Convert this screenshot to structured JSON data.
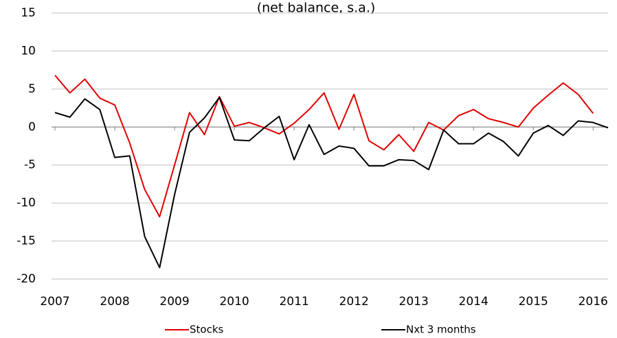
{
  "chart_data": {
    "type": "line",
    "title": "(net balance, s.a.)",
    "x": [
      2007,
      2007.25,
      2007.5,
      2007.75,
      2008,
      2008.25,
      2008.5,
      2008.75,
      2009,
      2009.25,
      2009.5,
      2009.75,
      2010,
      2010.25,
      2010.5,
      2010.75,
      2011,
      2011.25,
      2011.5,
      2011.75,
      2012,
      2012.25,
      2012.5,
      2012.75,
      2013,
      2013.25,
      2013.5,
      2013.75,
      2014,
      2014.25,
      2014.5,
      2014.75,
      2015,
      2015.25,
      2015.5,
      2015.75,
      2016,
      2016.25
    ],
    "series": [
      {
        "name": "Stocks",
        "color": "#e00000",
        "values": [
          6.8,
          4.5,
          6.3,
          3.8,
          2.9,
          -2.1,
          -8.2,
          -11.8,
          -5,
          1.9,
          -1,
          4,
          0.1,
          0.6,
          -0.1,
          -0.9,
          0.5,
          2.3,
          4.5,
          -0.3,
          4.3,
          -1.8,
          -3,
          -1,
          -3.2,
          0.6,
          -0.4,
          1.5,
          2.3,
          1.1,
          0.6,
          0,
          2.5,
          4.2,
          5.8,
          4.3,
          1.8,
          null
        ]
      },
      {
        "name": "Nxt 3 months",
        "color": "#000000",
        "values": [
          1.9,
          1.3,
          3.7,
          2.3,
          -4,
          -3.8,
          -14.4,
          -18.5,
          -8.9,
          -0.7,
          1.2,
          3.9,
          -1.7,
          -1.8,
          -0.1,
          1.4,
          -4.3,
          0.3,
          -3.6,
          -2.5,
          -2.8,
          -5.1,
          -5.1,
          -4.3,
          -4.4,
          -5.6,
          -0.4,
          -2.2,
          -2.2,
          -0.8,
          -1.9,
          -3.8,
          -0.8,
          0.2,
          -1.1,
          0.8,
          0.6,
          -0.1
        ]
      }
    ],
    "xlim": [
      2007,
      2016.25
    ],
    "xticks": [
      2007,
      2008,
      2009,
      2010,
      2011,
      2012,
      2013,
      2014,
      2015,
      2016
    ],
    "ylim": [
      -20,
      15
    ],
    "yticks": [
      -20,
      -15,
      -10,
      -5,
      0,
      5,
      10,
      15
    ],
    "grid": true
  }
}
